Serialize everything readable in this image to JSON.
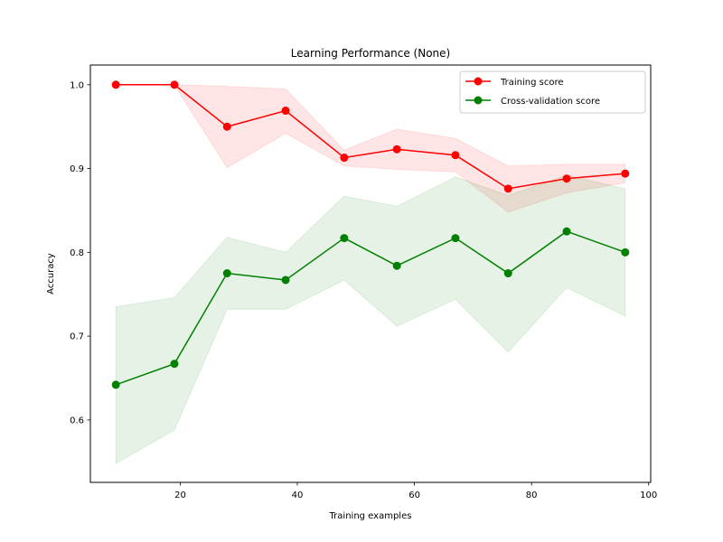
{
  "chart_data": {
    "type": "line",
    "title": "Learning Performance (None)",
    "xlabel": "Training examples",
    "ylabel": "Accuracy",
    "xlim": [
      4.65,
      100.35
    ],
    "ylim": [
      0.5255,
      1.0235
    ],
    "xticks": [
      20,
      40,
      60,
      80,
      100
    ],
    "yticks": [
      0.6,
      0.7,
      0.8,
      0.9,
      1.0
    ],
    "ytick_labels": [
      "0.6",
      "0.7",
      "0.8",
      "0.9",
      "1.0"
    ],
    "grid": false,
    "legend_position": "top-right",
    "x": [
      9,
      19,
      28,
      38,
      48,
      57,
      67,
      76,
      86,
      96
    ],
    "series": [
      {
        "name": "Training score",
        "color": "#ff0000",
        "band_color": "#ff0000",
        "marker": "circle",
        "values": [
          1.0,
          1.0,
          0.95,
          0.969,
          0.913,
          0.923,
          0.916,
          0.876,
          0.888,
          0.894
        ],
        "band_lower": [
          1.0,
          1.0,
          0.901,
          0.942,
          0.903,
          0.899,
          0.896,
          0.848,
          0.871,
          0.883
        ],
        "band_upper": [
          1.0,
          1.0,
          0.998,
          0.995,
          0.922,
          0.947,
          0.936,
          0.903,
          0.905,
          0.905
        ]
      },
      {
        "name": "Cross-validation score",
        "color": "#008000",
        "band_color": "#008000",
        "marker": "circle",
        "values": [
          0.642,
          0.667,
          0.775,
          0.767,
          0.817,
          0.784,
          0.817,
          0.775,
          0.825,
          0.8
        ],
        "band_lower": [
          0.548,
          0.588,
          0.732,
          0.732,
          0.767,
          0.712,
          0.744,
          0.681,
          0.758,
          0.724
        ],
        "band_upper": [
          0.735,
          0.746,
          0.818,
          0.8,
          0.867,
          0.855,
          0.89,
          0.868,
          0.892,
          0.876
        ]
      }
    ]
  }
}
